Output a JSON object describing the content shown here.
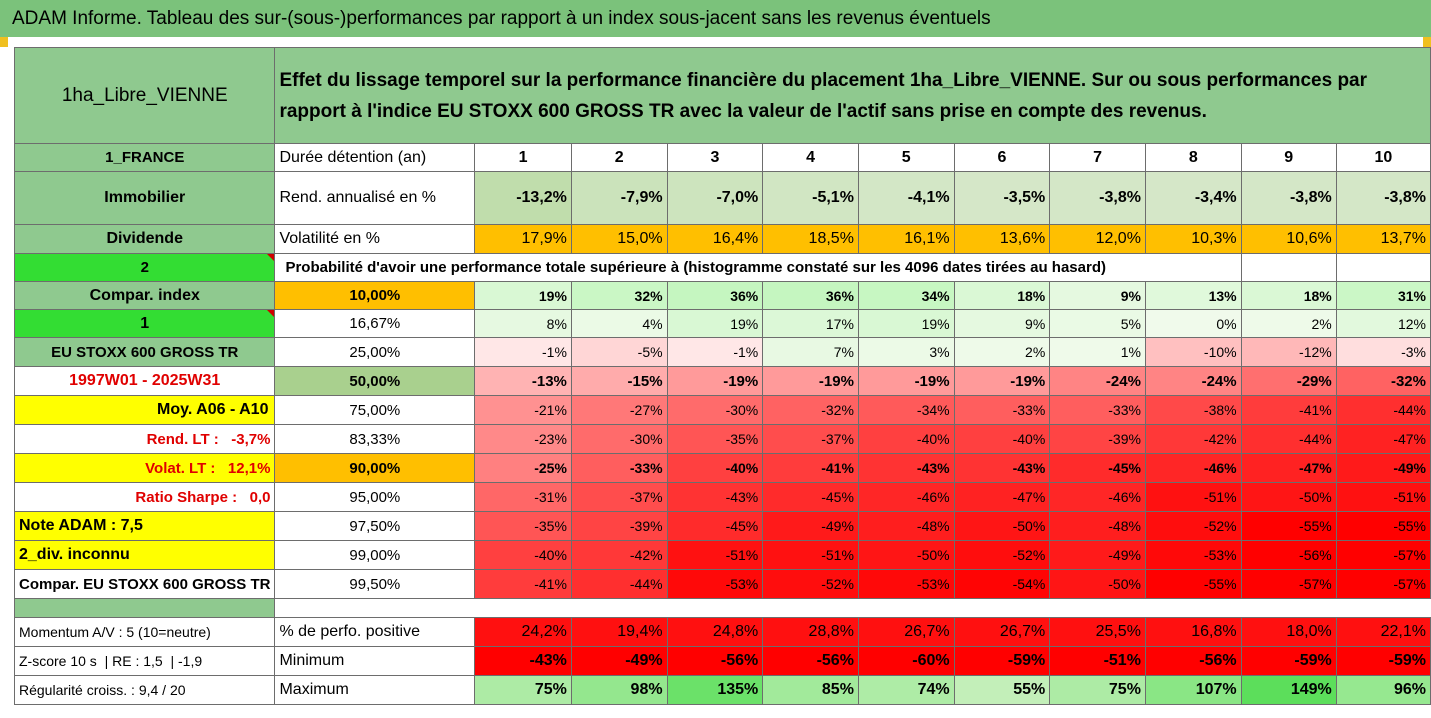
{
  "header": {
    "title": "ADAM Informe. Tableau des sur-(sous-)performances par rapport à un index sous-jacent sans les revenus éventuels",
    "fund_name": "1ha_Libre_VIENNE",
    "description": "Effet du lissage temporel sur la performance financière du placement 1ha_Libre_VIENNE. Sur ou sous performances par rapport à l'indice EU STOXX 600 GROSS TR avec la valeur de l'actif sans prise en compte des revenus."
  },
  "left_labels": {
    "country": "1_FRANCE",
    "category": "Immobilier",
    "type": "Dividende",
    "index_n": "2",
    "compar_index": "Compar. index",
    "level": "1",
    "index_name": "EU STOXX 600 GROSS TR",
    "period": "1997W01 - 2025W31",
    "moy": "Moy. A06 - A10",
    "rend_lt": "Rend. LT :   -3,7%",
    "volat_lt": "Volat. LT :   12,1%",
    "sharpe": "Ratio Sharpe :   0,0",
    "note": "Note ADAM : 7,5",
    "div": "2_div. inconnu",
    "compar_full": "Compar. EU STOXX 600 GROSS TR",
    "momentum": "Momentum A/V : 5 (10=neutre)",
    "zscore": "Z-score 10 s  | RE : 1,5  | -1,9",
    "regularite": "Régularité croiss. : 9,4 / 20"
  },
  "rows": {
    "duree": {
      "label": "Durée détention (an)",
      "values": [
        "1",
        "2",
        "3",
        "4",
        "5",
        "6",
        "7",
        "8",
        "9",
        "10"
      ]
    },
    "rend": {
      "label": "Rend. annualisé en %",
      "values": [
        "-13,2%",
        "-7,9%",
        "-7,0%",
        "-5,1%",
        "-4,1%",
        "-3,5%",
        "-3,8%",
        "-3,4%",
        "-3,8%",
        "-3,8%"
      ]
    },
    "volat": {
      "label": "Volatilité en %",
      "values": [
        "17,9%",
        "15,0%",
        "16,4%",
        "18,5%",
        "16,1%",
        "13,6%",
        "12,0%",
        "10,3%",
        "10,6%",
        "13,7%"
      ]
    },
    "proba_title": "Probabilité d'avoir une performance totale supérieure à (histogramme constaté sur les 4096 dates tirées au hasard)",
    "percentiles": [
      {
        "p": "10,00%",
        "values": [
          "19%",
          "32%",
          "36%",
          "36%",
          "34%",
          "18%",
          "9%",
          "13%",
          "18%",
          "31%"
        ]
      },
      {
        "p": "16,67%",
        "values": [
          "8%",
          "4%",
          "19%",
          "17%",
          "19%",
          "9%",
          "5%",
          "0%",
          "2%",
          "12%"
        ]
      },
      {
        "p": "25,00%",
        "values": [
          "-1%",
          "-5%",
          "-1%",
          "7%",
          "3%",
          "2%",
          "1%",
          "-10%",
          "-12%",
          "-3%"
        ]
      },
      {
        "p": "50,00%",
        "values": [
          "-13%",
          "-15%",
          "-19%",
          "-19%",
          "-19%",
          "-19%",
          "-24%",
          "-24%",
          "-29%",
          "-32%"
        ]
      },
      {
        "p": "75,00%",
        "values": [
          "-21%",
          "-27%",
          "-30%",
          "-32%",
          "-34%",
          "-33%",
          "-33%",
          "-38%",
          "-41%",
          "-44%"
        ]
      },
      {
        "p": "83,33%",
        "values": [
          "-23%",
          "-30%",
          "-35%",
          "-37%",
          "-40%",
          "-40%",
          "-39%",
          "-42%",
          "-44%",
          "-47%"
        ]
      },
      {
        "p": "90,00%",
        "values": [
          "-25%",
          "-33%",
          "-40%",
          "-41%",
          "-43%",
          "-43%",
          "-45%",
          "-46%",
          "-47%",
          "-49%"
        ]
      },
      {
        "p": "95,00%",
        "values": [
          "-31%",
          "-37%",
          "-43%",
          "-45%",
          "-46%",
          "-47%",
          "-46%",
          "-51%",
          "-50%",
          "-51%"
        ]
      },
      {
        "p": "97,50%",
        "values": [
          "-35%",
          "-39%",
          "-45%",
          "-49%",
          "-48%",
          "-50%",
          "-48%",
          "-52%",
          "-55%",
          "-55%"
        ]
      },
      {
        "p": "99,00%",
        "values": [
          "-40%",
          "-42%",
          "-51%",
          "-51%",
          "-50%",
          "-52%",
          "-49%",
          "-53%",
          "-56%",
          "-57%"
        ]
      },
      {
        "p": "99,50%",
        "values": [
          "-41%",
          "-44%",
          "-53%",
          "-52%",
          "-53%",
          "-54%",
          "-50%",
          "-55%",
          "-57%",
          "-57%"
        ]
      }
    ],
    "positive": {
      "label": "% de perfo. positive",
      "values": [
        "24,2%",
        "19,4%",
        "24,8%",
        "28,8%",
        "26,7%",
        "26,7%",
        "25,5%",
        "16,8%",
        "18,0%",
        "22,1%"
      ]
    },
    "minimum": {
      "label": "Minimum",
      "values": [
        "-43%",
        "-49%",
        "-56%",
        "-56%",
        "-60%",
        "-59%",
        "-51%",
        "-56%",
        "-59%",
        "-59%"
      ]
    },
    "maximum": {
      "label": "Maximum",
      "values": [
        "75%",
        "98%",
        "135%",
        "85%",
        "74%",
        "55%",
        "75%",
        "107%",
        "149%",
        "96%"
      ]
    }
  },
  "colors": {
    "header_green": "#7bc27b",
    "label_green": "#8fc98f",
    "bright_green": "#33dd33",
    "yellow": "#ffff00",
    "orange": "#ffbf00",
    "rend_green": "#c6e0b4"
  }
}
